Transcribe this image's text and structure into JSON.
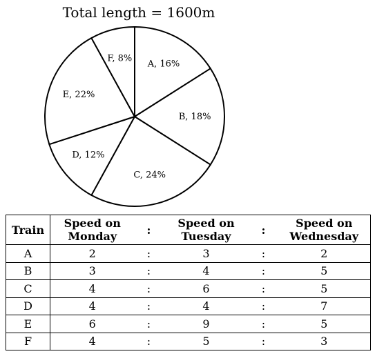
{
  "chart_data": [
    {
      "type": "pie",
      "title": "Total length = 1600m",
      "slices": [
        {
          "label": "A, 16%",
          "category": "A",
          "value": 16
        },
        {
          "label": "B, 18%",
          "category": "B",
          "value": 18
        },
        {
          "label": "C, 24%",
          "category": "C",
          "value": 24
        },
        {
          "label": "D, 12%",
          "category": "D",
          "value": 12
        },
        {
          "label": "E, 22%",
          "category": "E",
          "value": 22
        },
        {
          "label": "F, 8%",
          "category": "F",
          "value": 8
        }
      ],
      "fill_color": "#ffffff",
      "stroke_color": "#000000",
      "start": "top, clockwise"
    },
    {
      "type": "table",
      "columns": [
        "Train",
        "Speed on Monday",
        ":",
        "Speed on Tuesday",
        ":",
        "Speed on Wednesday"
      ],
      "rows": [
        [
          "A",
          "2",
          ":",
          "3",
          ":",
          "2"
        ],
        [
          "B",
          "3",
          ":",
          "4",
          ":",
          "5"
        ],
        [
          "C",
          "4",
          ":",
          "6",
          ":",
          "5"
        ],
        [
          "D",
          "4",
          ":",
          "4",
          ":",
          "7"
        ],
        [
          "E",
          "6",
          ":",
          "9",
          ":",
          "5"
        ],
        [
          "F",
          "4",
          ":",
          "5",
          ":",
          "3"
        ]
      ]
    }
  ]
}
